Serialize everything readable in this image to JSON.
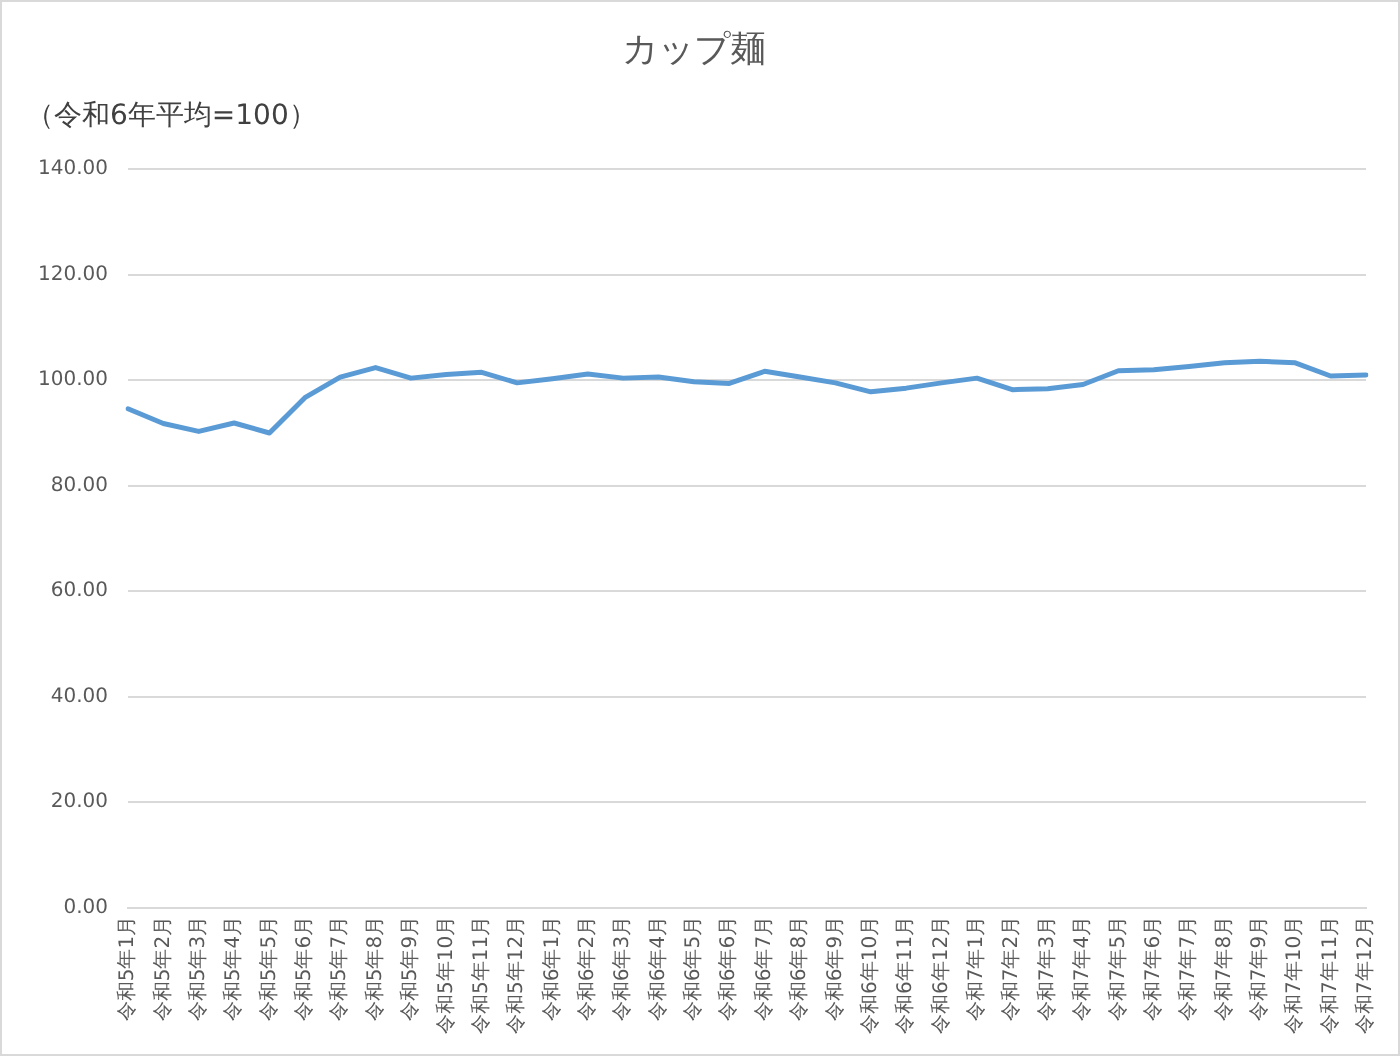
{
  "chart_data": {
    "type": "line",
    "title": "カップ麺",
    "ylabel": "（令和6年平均=100）",
    "categories": [
      "令和5年1月",
      "令和5年2月",
      "令和5年3月",
      "令和5年4月",
      "令和5年5月",
      "令和5年6月",
      "令和5年7月",
      "令和5年8月",
      "令和5年9月",
      "令和5年10月",
      "令和5年11月",
      "令和5年12月",
      "令和6年1月",
      "令和6年2月",
      "令和6年3月",
      "令和6年4月",
      "令和6年5月",
      "令和6年6月",
      "令和6年7月",
      "令和6年8月",
      "令和6年9月",
      "令和6年10月",
      "令和6年11月",
      "令和6年12月",
      "令和7年1月",
      "令和7年2月",
      "令和7年3月",
      "令和7年4月",
      "令和7年5月",
      "令和7年6月",
      "令和7年7月",
      "令和7年8月",
      "令和7年9月",
      "令和7年10月",
      "令和7年11月",
      "令和7年12月"
    ],
    "series": [
      {
        "color": "#5b9bd5",
        "values": [
          94.6,
          91.8,
          90.3,
          91.9,
          90.0,
          96.7,
          100.6,
          102.4,
          100.4,
          101.1,
          101.5,
          99.5,
          100.3,
          101.2,
          100.4,
          100.6,
          99.7,
          99.4,
          101.7,
          100.6,
          99.5,
          97.8,
          98.5,
          99.5,
          100.4,
          98.2,
          98.4,
          99.2,
          101.8,
          102.0,
          102.6,
          103.3,
          103.6,
          103.3,
          100.8,
          101.0
        ]
      }
    ],
    "ylim": [
      0,
      140
    ],
    "yticks": [
      {
        "value": 0,
        "label": "0.00"
      },
      {
        "value": 20,
        "label": "20.00"
      },
      {
        "value": 40,
        "label": "40.00"
      },
      {
        "value": 60,
        "label": "60.00"
      },
      {
        "value": 80,
        "label": "80.00"
      },
      {
        "value": 100,
        "label": "100.00"
      },
      {
        "value": 120,
        "label": "120.00"
      },
      {
        "value": 140,
        "label": "140.00"
      }
    ],
    "grid": "y",
    "legend": false,
    "marker": "none",
    "line_style": "solid"
  }
}
